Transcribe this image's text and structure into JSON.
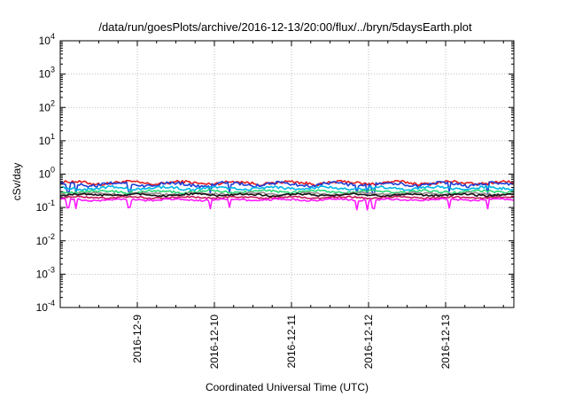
{
  "chart_data": {
    "type": "line",
    "title": "/data/run/goesPlots/archive/2016-12-13/20:00/flux/../bryn/5daysEarth.plot",
    "xlabel": "Coordinated Universal Time (UTC)",
    "ylabel": "cSv/day",
    "yscale": "log",
    "ylim": [
      0.0001,
      10000
    ],
    "xlim": [
      0,
      5
    ],
    "grid": true,
    "y_ticks": [
      {
        "base": "10",
        "exp": "4"
      },
      {
        "base": "10",
        "exp": "3"
      },
      {
        "base": "10",
        "exp": "2"
      },
      {
        "base": "10",
        "exp": "1"
      },
      {
        "base": "10",
        "exp": "0"
      },
      {
        "base": "10",
        "exp": "-1"
      },
      {
        "base": "10",
        "exp": "-2"
      },
      {
        "base": "10",
        "exp": "-3"
      },
      {
        "base": "10",
        "exp": "-4"
      }
    ],
    "x_ticks": [
      {
        "label": "2016-12-9",
        "x": 1
      },
      {
        "label": "2016-12-10",
        "x": 2
      },
      {
        "label": "2016-12-11",
        "x": 3
      },
      {
        "label": "2016-12-12",
        "x": 4
      },
      {
        "label": "2016-12-13",
        "x": 5
      }
    ],
    "series": [
      {
        "color": "#e41a1c",
        "level": 0.55,
        "amp": 0.09,
        "dips": false
      },
      {
        "color": "#1f3fd6",
        "level": 0.5,
        "amp": 0.1,
        "dips": true
      },
      {
        "color": "#00b7e6",
        "level": 0.38,
        "amp": 0.08,
        "dips": false
      },
      {
        "color": "#28d977",
        "level": 0.3,
        "amp": 0.07,
        "dips": false
      },
      {
        "color": "#9c8d8d",
        "level": 0.26,
        "amp": 0.06,
        "dips": false
      },
      {
        "color": "#111111",
        "level": 0.24,
        "amp": 0.06,
        "dips": false
      },
      {
        "color": "#c2185b",
        "level": 0.2,
        "amp": 0.05,
        "dips": false
      },
      {
        "color": "#ff19ff",
        "level": 0.17,
        "amp": 0.05,
        "dips": true
      }
    ]
  }
}
